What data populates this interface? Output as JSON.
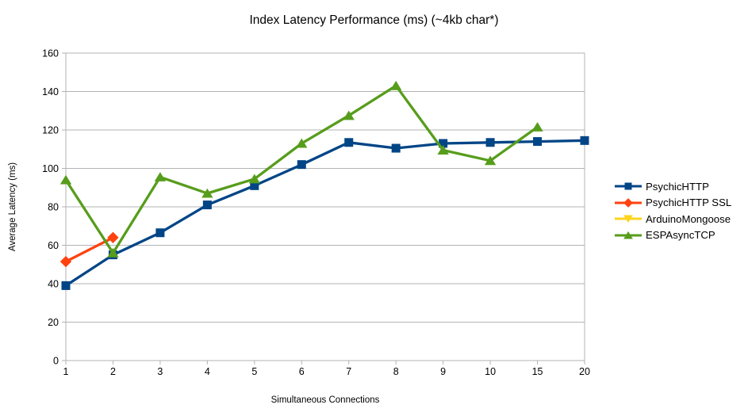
{
  "chart_data": {
    "type": "line",
    "title": "Index Latency Performance (ms) (~4kb char*)",
    "xlabel": "Simultaneous Connections",
    "ylabel": "Average Latency (ms)",
    "categories": [
      "1",
      "2",
      "3",
      "4",
      "5",
      "6",
      "7",
      "8",
      "9",
      "10",
      "15",
      "20"
    ],
    "ylim": [
      0,
      160
    ],
    "yticks": [
      0,
      20,
      40,
      60,
      80,
      100,
      120,
      140,
      160
    ],
    "grid": "horizontal",
    "legend_position": "right",
    "series": [
      {
        "name": "PsychicHTTP",
        "color": "#004586",
        "marker": "square",
        "values": [
          39,
          55,
          66.5,
          81,
          91,
          102,
          113.5,
          110.5,
          113,
          113.5,
          114,
          114.5
        ]
      },
      {
        "name": "PsychicHTTP SSL",
        "color": "#ff420e",
        "marker": "diamond",
        "values": [
          51.5,
          64,
          null,
          null,
          null,
          null,
          null,
          null,
          null,
          null,
          null,
          null
        ]
      },
      {
        "name": "ArduinoMongoose",
        "color": "#ffd320",
        "marker": "triangle-down",
        "values": [
          null,
          null,
          null,
          null,
          null,
          null,
          null,
          null,
          null,
          null,
          null,
          null
        ]
      },
      {
        "name": "ESPAsyncTCP",
        "color": "#579d1c",
        "marker": "triangle-up",
        "values": [
          94,
          56,
          95.5,
          87,
          94.5,
          113,
          127.5,
          143,
          109.5,
          104,
          121.5,
          null
        ]
      }
    ]
  },
  "colors": {
    "background": "#ffffff",
    "grid": "#b3b3b3",
    "axis": "#b3b3b3",
    "text": "#000000"
  }
}
